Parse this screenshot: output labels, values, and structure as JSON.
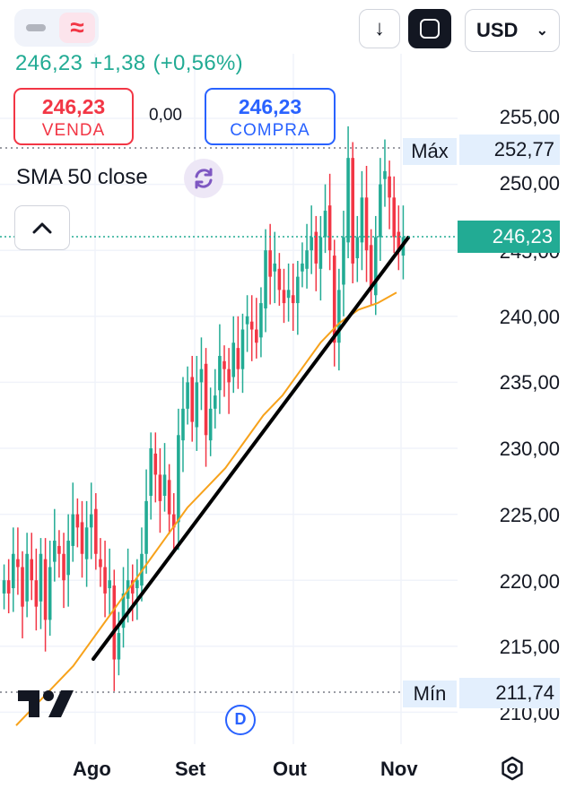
{
  "toolbar": {
    "chart_style_line_icon": "dash-icon",
    "chart_style_wave_icon": "wave-icon",
    "wave_glyph": "≈",
    "download_glyph": "↓",
    "currency": "USD",
    "currency_chevron": "⌄"
  },
  "quote": {
    "price": "246,23",
    "change": "+1,38",
    "change_pct": "(+0,56%)"
  },
  "trade": {
    "sell_price": "246,23",
    "sell_label": "VENDA",
    "spread": "0,00",
    "buy_price": "246,23",
    "buy_label": "COMPRA"
  },
  "indicator": {
    "label": "SMA 50 close"
  },
  "price_axis": {
    "ticks": [
      "255,00",
      "250,00",
      "245,00",
      "240,00",
      "235,00",
      "230,00",
      "225,00",
      "220,00",
      "215,00",
      "210,00"
    ],
    "max_label": "Máx",
    "max_value": "252,77",
    "min_label": "Mín",
    "min_value": "211,74",
    "current_value": "246,23"
  },
  "time_axis": {
    "labels": [
      "Ago",
      "Set",
      "Out",
      "Nov"
    ]
  },
  "badges": {
    "dividend": "D"
  },
  "colors": {
    "up": "#22ab94",
    "down": "#f23645",
    "sma": "#f7a21b",
    "trendline": "#000000",
    "accent_blue": "#2962ff"
  },
  "chart_data": {
    "type": "candlestick",
    "indicator": "SMA 50 close",
    "current_price": 246.23,
    "high": 252.77,
    "low": 211.74,
    "ylim": [
      209,
      256
    ],
    "x_labels": [
      "Ago",
      "Set",
      "Out",
      "Nov"
    ],
    "close": [
      220,
      219,
      222,
      221,
      218,
      222,
      220,
      218,
      222,
      217,
      221,
      223,
      222,
      220,
      223,
      225,
      224,
      222,
      224,
      225,
      222,
      221,
      219,
      220,
      214,
      216,
      219,
      220,
      219,
      220,
      222,
      226,
      230,
      228,
      226,
      228,
      225,
      224,
      231,
      233,
      235,
      232,
      235,
      236,
      231,
      233,
      234,
      237,
      236,
      235,
      238,
      236,
      239,
      240,
      239,
      238,
      241,
      245,
      243,
      244,
      242,
      241,
      242,
      241,
      243,
      244,
      245,
      246,
      244,
      246,
      248,
      245,
      238,
      242,
      246,
      252,
      244,
      246,
      249,
      245,
      242,
      246,
      250,
      251,
      249,
      246,
      245,
      246
    ],
    "sma": [
      209,
      210.5,
      212,
      213.5,
      215.5,
      217.5,
      219.5,
      221.5,
      223.5,
      225.5,
      227,
      228.5,
      230.5,
      232.5,
      234,
      236,
      238,
      239.5,
      240.5,
      241,
      241.8
    ]
  }
}
